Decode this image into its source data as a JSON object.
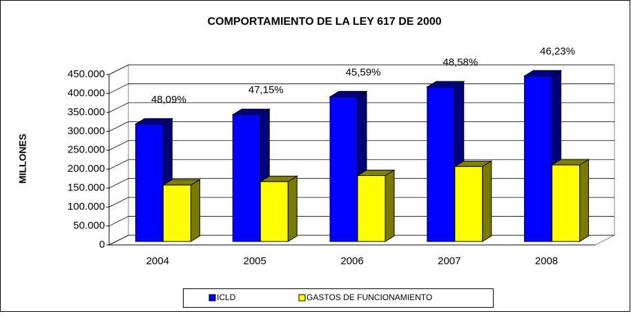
{
  "chart_data": {
    "type": "bar3d",
    "title": "COMPORTAMIENTO DE LA LEY 617 DE 2000",
    "y_label": "MILLONES",
    "categories": [
      "2004",
      "2005",
      "2006",
      "2007",
      "2008"
    ],
    "series": [
      {
        "name": "ICLD",
        "color": "#0000ff",
        "values": [
          310000,
          335000,
          382000,
          408000,
          437000
        ]
      },
      {
        "name": "GASTOS DE FUNCIONAMIENTO",
        "color": "#ffff00",
        "values": [
          149000,
          158000,
          174000,
          198000,
          202000
        ]
      }
    ],
    "annotations": [
      "48,09%",
      "47,15%",
      "45,59%",
      "48,58%",
      "46,23%"
    ],
    "ylim": [
      0,
      450000
    ],
    "yticks": [
      0,
      {
        "value": 50000,
        "label": "50.000"
      },
      {
        "value": 100000,
        "label": "100.000"
      },
      {
        "value": 150000,
        "label": "150.000"
      },
      {
        "value": 200000,
        "label": "200.000"
      },
      {
        "value": 250000,
        "label": "250.000"
      },
      {
        "value": 300000,
        "label": "300.000"
      },
      {
        "value": 350000,
        "label": "350.000"
      },
      {
        "value": 400000,
        "label": "400.000"
      },
      {
        "value": 450000,
        "label": "450.000"
      }
    ],
    "grid": true,
    "legend": "bottom"
  }
}
